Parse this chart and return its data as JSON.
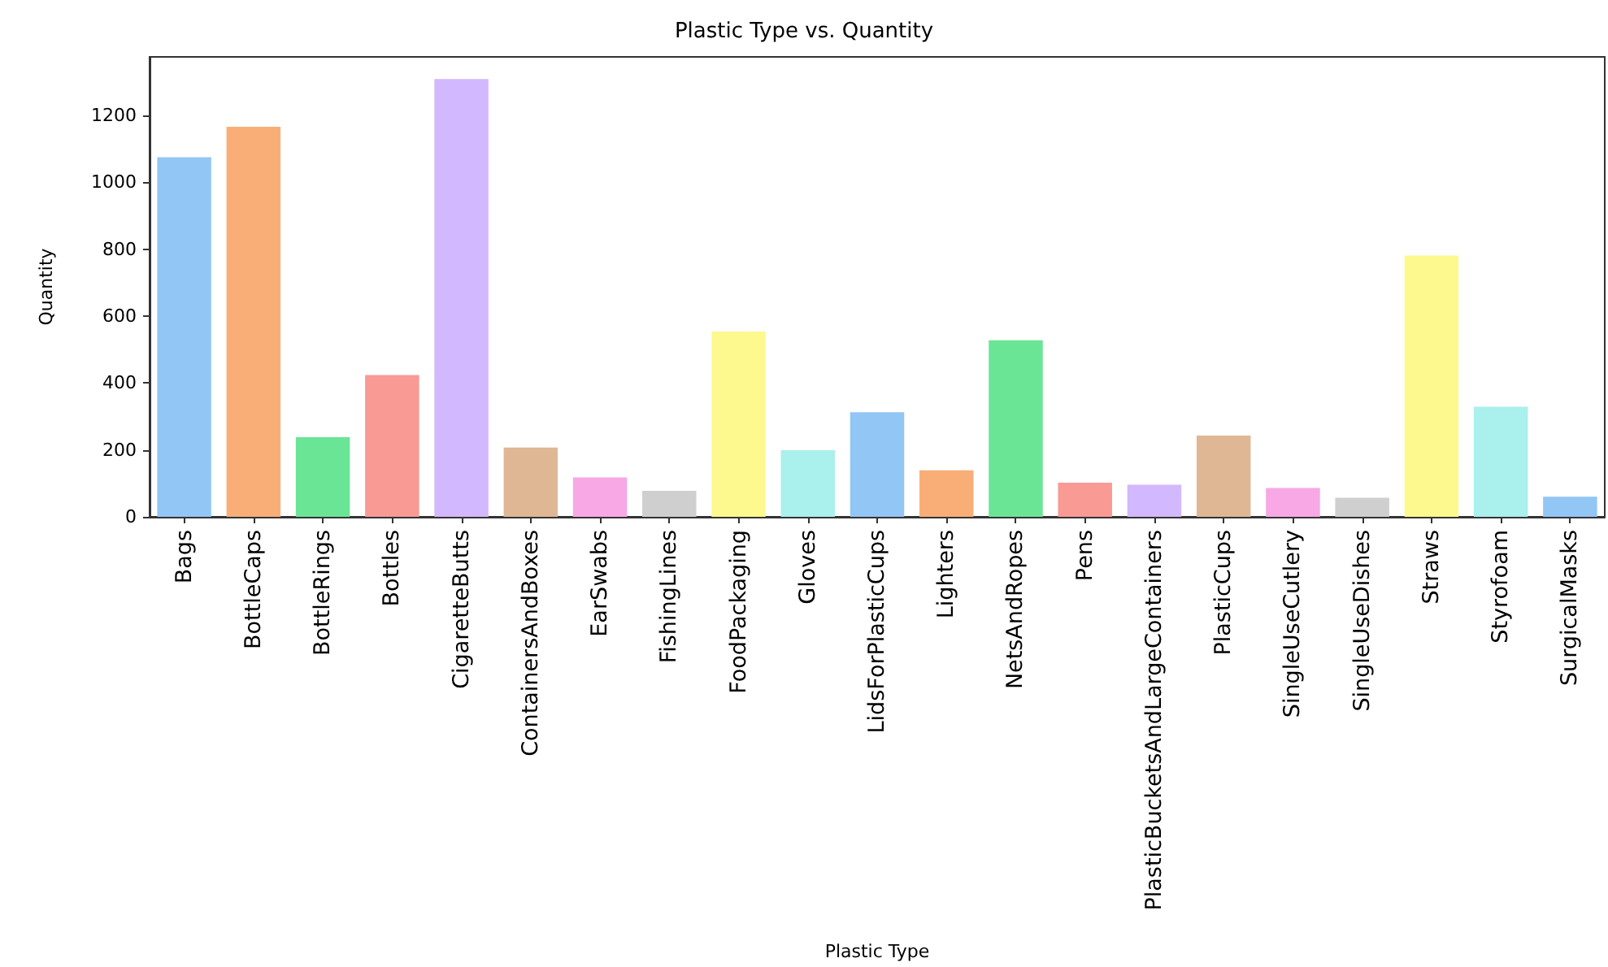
{
  "chart_data": {
    "type": "bar",
    "title": "Plastic Type vs. Quantity",
    "xlabel": "Plastic Type",
    "ylabel": "Quantity",
    "categories": [
      "Bags",
      "BottleCaps",
      "BottleRings",
      "Bottles",
      "CigaretteButts",
      "ContainersAndBoxes",
      "EarSwabs",
      "FishingLines",
      "FoodPackaging",
      "Gloves",
      "LidsForPlasticCups",
      "Lighters",
      "NetsAndRopes",
      "Pens",
      "PlasticBucketsAndLargeContainers",
      "PlasticCups",
      "SingleUseCutlery",
      "SingleUseDishes",
      "Straws",
      "Styrofoam",
      "SurgicalMasks"
    ],
    "values": [
      1075,
      1166,
      238,
      424,
      1309,
      207,
      118,
      78,
      554,
      199,
      313,
      139,
      528,
      102,
      96,
      243,
      86,
      57,
      781,
      329,
      60
    ],
    "colors": [
      "#92c6f5",
      "#f9ae78",
      "#6ae595",
      "#f99a95",
      "#d2b8fe",
      "#e0b794",
      "#f8a8e5",
      "#cfcfcf",
      "#fdf98e",
      "#aaf0ec",
      "#92c6f5",
      "#f9ae78",
      "#6ae595",
      "#f99a95",
      "#d2b8fe",
      "#e0b794",
      "#f8a8e5",
      "#cfcfcf",
      "#fdf98e",
      "#aaf0ec",
      "#92c6f5"
    ],
    "ylim": [
      0,
      1375
    ],
    "yticks": [
      0,
      200,
      400,
      600,
      800,
      1000,
      1200
    ]
  }
}
